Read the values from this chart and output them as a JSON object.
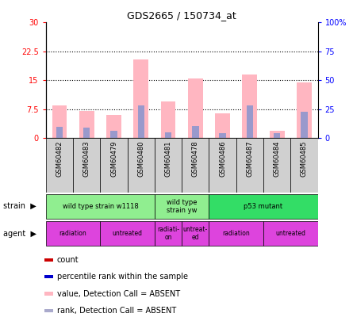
{
  "title": "GDS2665 / 150734_at",
  "samples": [
    "GSM60482",
    "GSM60483",
    "GSM60479",
    "GSM60480",
    "GSM60481",
    "GSM60478",
    "GSM60486",
    "GSM60487",
    "GSM60484",
    "GSM60485"
  ],
  "pink_bar_heights": [
    8.5,
    7.0,
    6.0,
    20.5,
    9.5,
    15.5,
    6.5,
    16.5,
    1.8,
    14.5
  ],
  "blue_bar_heights": [
    3.0,
    2.8,
    1.8,
    8.5,
    1.5,
    3.2,
    1.2,
    8.5,
    1.2,
    6.8
  ],
  "ylim_left": [
    0,
    30
  ],
  "ylim_right": [
    0,
    100
  ],
  "yticks_left": [
    0,
    7.5,
    15,
    22.5,
    30
  ],
  "yticks_right": [
    0,
    25,
    50,
    75,
    100
  ],
  "ytick_labels_left": [
    "0",
    "7.5",
    "15",
    "22.5",
    "30"
  ],
  "ytick_labels_right": [
    "0",
    "25",
    "50",
    "75",
    "100%"
  ],
  "grid_lines": [
    7.5,
    15,
    22.5
  ],
  "strain_groups": [
    {
      "label": "wild type strain w1118",
      "start": 0,
      "end": 4,
      "color": "#90EE90"
    },
    {
      "label": "wild type\nstrain yw",
      "start": 4,
      "end": 6,
      "color": "#90EE90"
    },
    {
      "label": "p53 mutant",
      "start": 6,
      "end": 10,
      "color": "#33DD66"
    }
  ],
  "agent_groups": [
    {
      "label": "radiation",
      "start": 0,
      "end": 2
    },
    {
      "label": "untreated",
      "start": 2,
      "end": 4
    },
    {
      "label": "radiati-\non",
      "start": 4,
      "end": 5
    },
    {
      "label": "untreat-\ned",
      "start": 5,
      "end": 6
    },
    {
      "label": "radiation",
      "start": 6,
      "end": 8
    },
    {
      "label": "untreated",
      "start": 8,
      "end": 10
    }
  ],
  "pink_color": "#FFB6C1",
  "blue_color": "#9999CC",
  "red_color": "#CC0000",
  "dark_blue_color": "#0000CC",
  "agent_color": "#DD44DD",
  "bar_width": 0.55,
  "legend_items": [
    {
      "color": "#CC0000",
      "label": "count"
    },
    {
      "color": "#0000CC",
      "label": "percentile rank within the sample"
    },
    {
      "color": "#FFB6C1",
      "label": "value, Detection Call = ABSENT"
    },
    {
      "color": "#AAAACC",
      "label": "rank, Detection Call = ABSENT"
    }
  ]
}
